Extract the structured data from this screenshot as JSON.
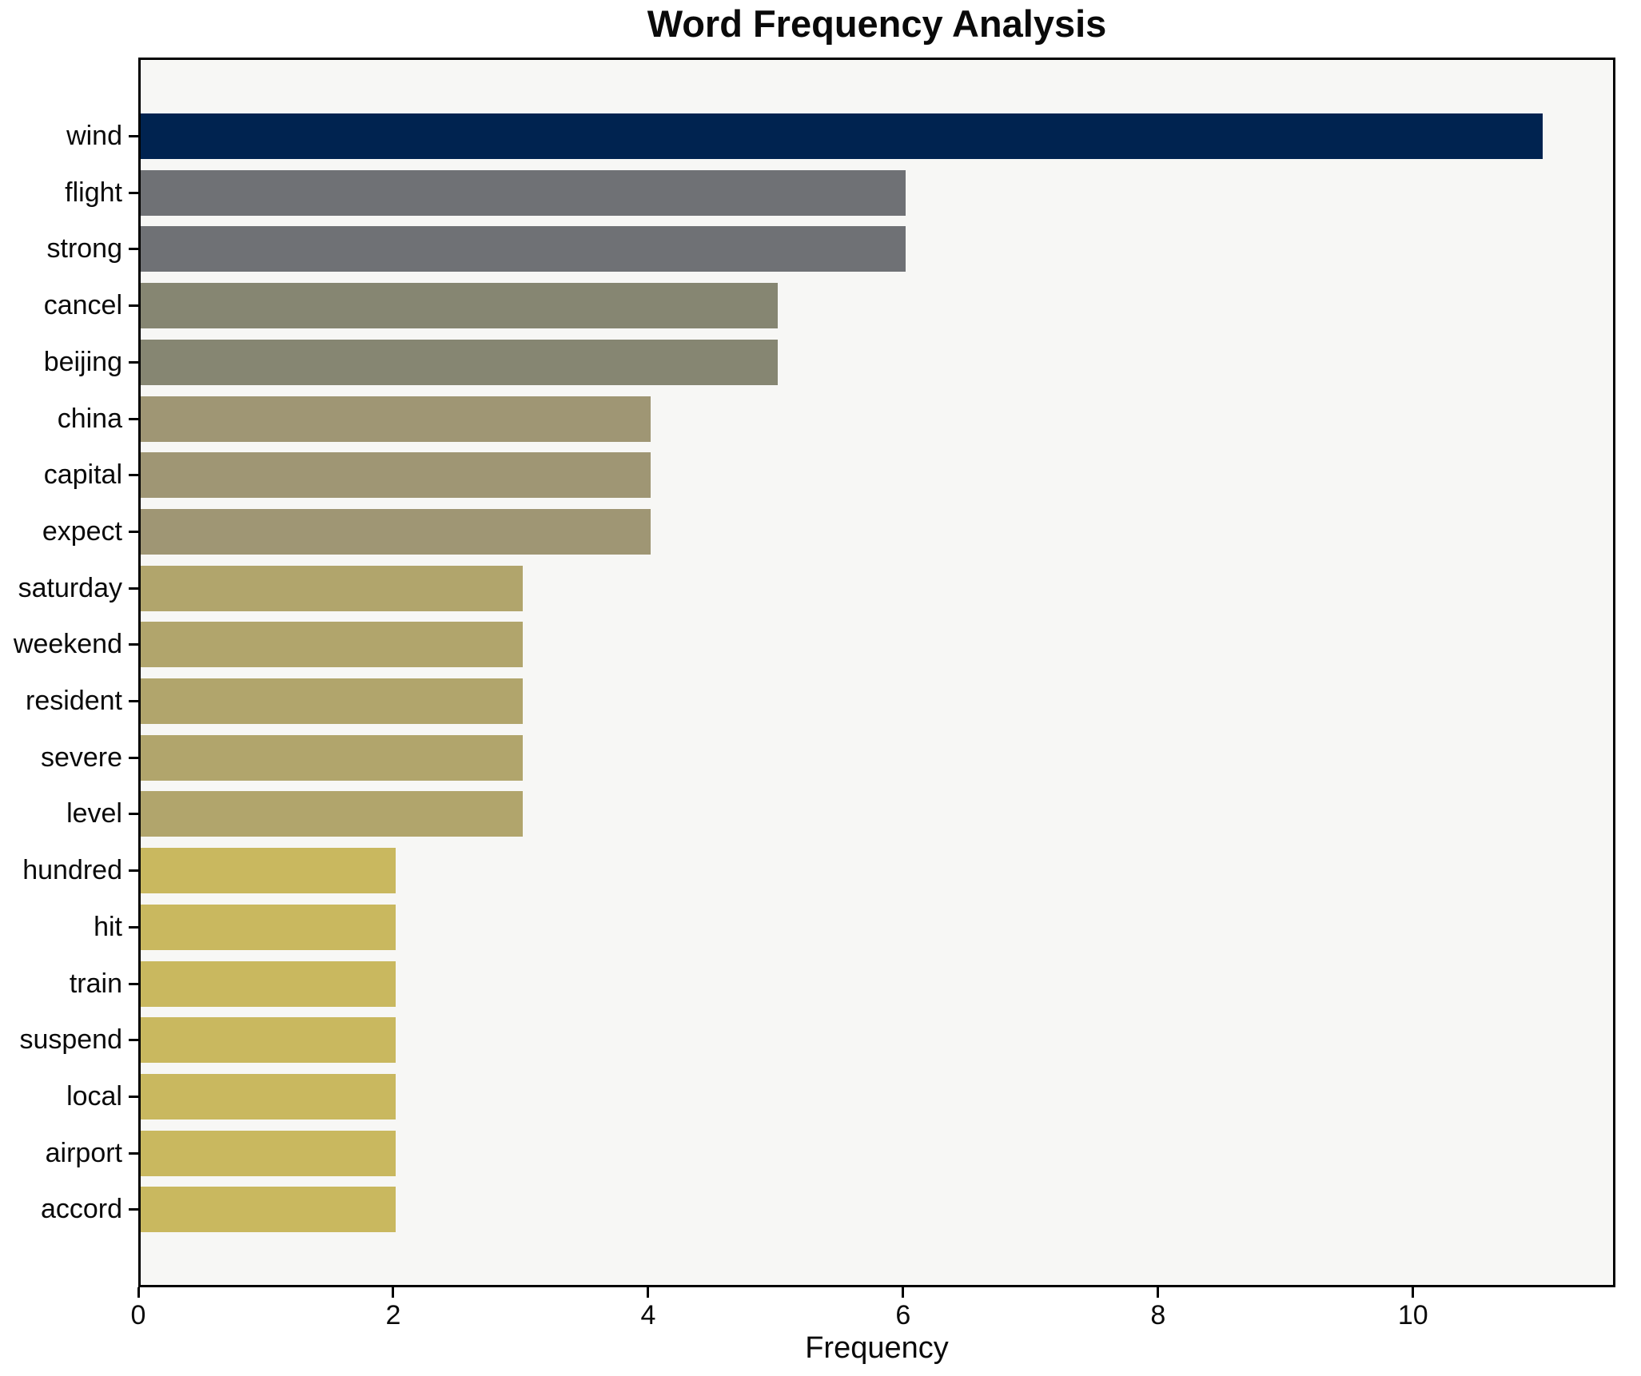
{
  "figure": {
    "background": "#ffffff",
    "plot_background": "#f7f7f5",
    "axis_color": "#000000",
    "text_color": "#0a0a0a"
  },
  "chart_data": {
    "type": "bar",
    "orientation": "horizontal",
    "title": "Word Frequency Analysis",
    "xlabel": "Frequency",
    "ylabel": "",
    "categories": [
      "wind",
      "flight",
      "strong",
      "cancel",
      "beijing",
      "china",
      "capital",
      "expect",
      "saturday",
      "weekend",
      "resident",
      "severe",
      "level",
      "hundred",
      "hit",
      "train",
      "suspend",
      "local",
      "airport",
      "accord"
    ],
    "values": [
      11,
      6,
      6,
      5,
      5,
      4,
      4,
      4,
      3,
      3,
      3,
      3,
      3,
      2,
      2,
      2,
      2,
      2,
      2,
      2
    ],
    "bar_colors": [
      "#002350",
      "#6f7175",
      "#6f7175",
      "#868672",
      "#868672",
      "#9f9674",
      "#9f9674",
      "#9f9674",
      "#b1a56c",
      "#b1a56c",
      "#b1a56c",
      "#b1a56c",
      "#b1a56c",
      "#c9b85f",
      "#c9b85f",
      "#c9b85f",
      "#c9b85f",
      "#c9b85f",
      "#c9b85f",
      "#c9b85f"
    ],
    "x_ticks": [
      0,
      2,
      4,
      6,
      8,
      10
    ],
    "xlim": [
      0,
      11.55
    ],
    "grid": false,
    "legend": false
  }
}
